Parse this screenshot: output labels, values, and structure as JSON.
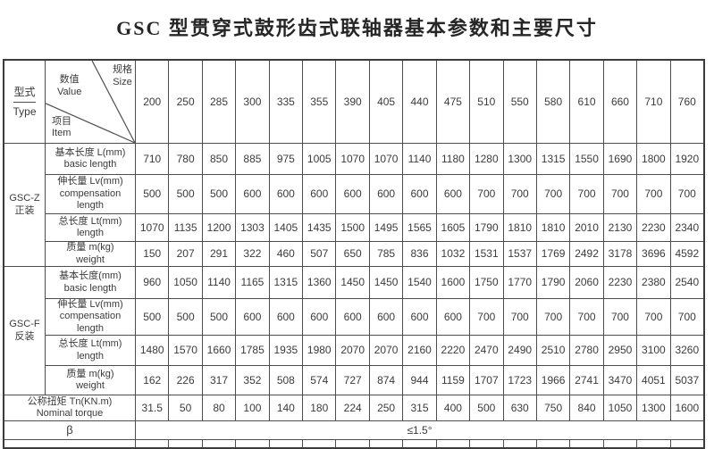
{
  "title": "GSC 型贯穿式鼓形齿式联轴器基本参数和主要尺寸",
  "header": {
    "type_cn": "型式",
    "type_en": "Type",
    "value_cn": "数值",
    "value_en": "Value",
    "size_cn": "规格",
    "size_en": "Size",
    "item_cn": "项目",
    "item_en": "Item",
    "sizes": [
      "200",
      "250",
      "285",
      "300",
      "335",
      "355",
      "390",
      "405",
      "440",
      "475",
      "510",
      "550",
      "580",
      "610",
      "660",
      "710",
      "760"
    ]
  },
  "groups": [
    {
      "label_line1": "GSC-Z",
      "label_line2": "正装",
      "rows": [
        {
          "label_cn": "基本长度 L(mm)",
          "label_en": "basic length",
          "values": [
            "710",
            "780",
            "850",
            "885",
            "975",
            "1005",
            "1070",
            "1070",
            "1140",
            "1180",
            "1280",
            "1300",
            "1315",
            "1550",
            "1690",
            "1800",
            "1920"
          ]
        },
        {
          "label_cn": "伸长量 Lv(mm)",
          "label_en": "compensation length",
          "values": [
            "500",
            "500",
            "500",
            "600",
            "600",
            "600",
            "600",
            "600",
            "600",
            "600",
            "700",
            "700",
            "700",
            "700",
            "700",
            "700",
            "700"
          ]
        },
        {
          "label_cn": "总长度 Lt(mm)",
          "label_en": "length",
          "values": [
            "1070",
            "1135",
            "1200",
            "1303",
            "1405",
            "1435",
            "1500",
            "1495",
            "1565",
            "1605",
            "1790",
            "1810",
            "1810",
            "2010",
            "2130",
            "2230",
            "2340"
          ]
        },
        {
          "label_cn": "质量 m(kg)",
          "label_en": "weight",
          "values": [
            "150",
            "207",
            "291",
            "322",
            "460",
            "507",
            "650",
            "785",
            "836",
            "1032",
            "1531",
            "1537",
            "1769",
            "2492",
            "3178",
            "3696",
            "4592"
          ]
        }
      ]
    },
    {
      "label_line1": "GSC-F",
      "label_line2": "反装",
      "rows": [
        {
          "label_cn": "基本长度(mm)",
          "label_en": "basic length",
          "values": [
            "960",
            "1050",
            "1140",
            "1165",
            "1315",
            "1360",
            "1450",
            "1450",
            "1540",
            "1600",
            "1750",
            "1770",
            "1790",
            "2060",
            "2230",
            "2380",
            "2540"
          ]
        },
        {
          "label_cn": "伸长量 Lv(mm)",
          "label_en": "compensation length",
          "values": [
            "500",
            "500",
            "500",
            "600",
            "600",
            "600",
            "600",
            "600",
            "600",
            "600",
            "700",
            "700",
            "700",
            "700",
            "700",
            "700",
            "700"
          ]
        },
        {
          "label_cn": "总长度 Lt(mm)",
          "label_en": "length",
          "values": [
            "1480",
            "1570",
            "1660",
            "1785",
            "1935",
            "1980",
            "2070",
            "2070",
            "2160",
            "2220",
            "2470",
            "2490",
            "2510",
            "2780",
            "2950",
            "3100",
            "3260"
          ]
        },
        {
          "label_cn": "质量 m(kg)",
          "label_en": "weight",
          "values": [
            "162",
            "226",
            "317",
            "352",
            "508",
            "574",
            "727",
            "874",
            "944",
            "1159",
            "1707",
            "1723",
            "1966",
            "2741",
            "3470",
            "4051",
            "5037"
          ]
        }
      ]
    }
  ],
  "torque": {
    "label_cn": "公称扭矩 Tn(KN.m)",
    "label_en": "Nominal torque",
    "values": [
      "31.5",
      "50",
      "80",
      "100",
      "140",
      "180",
      "224",
      "250",
      "315",
      "400",
      "500",
      "630",
      "750",
      "840",
      "1050",
      "1300",
      "1600"
    ]
  },
  "beta": {
    "label": "β",
    "value": "≤1.5°"
  },
  "colors": {
    "border": "#4e4e4e",
    "outer_border": "#3c3c3c",
    "text": "#3b3b3b",
    "background": "#ffffff"
  }
}
